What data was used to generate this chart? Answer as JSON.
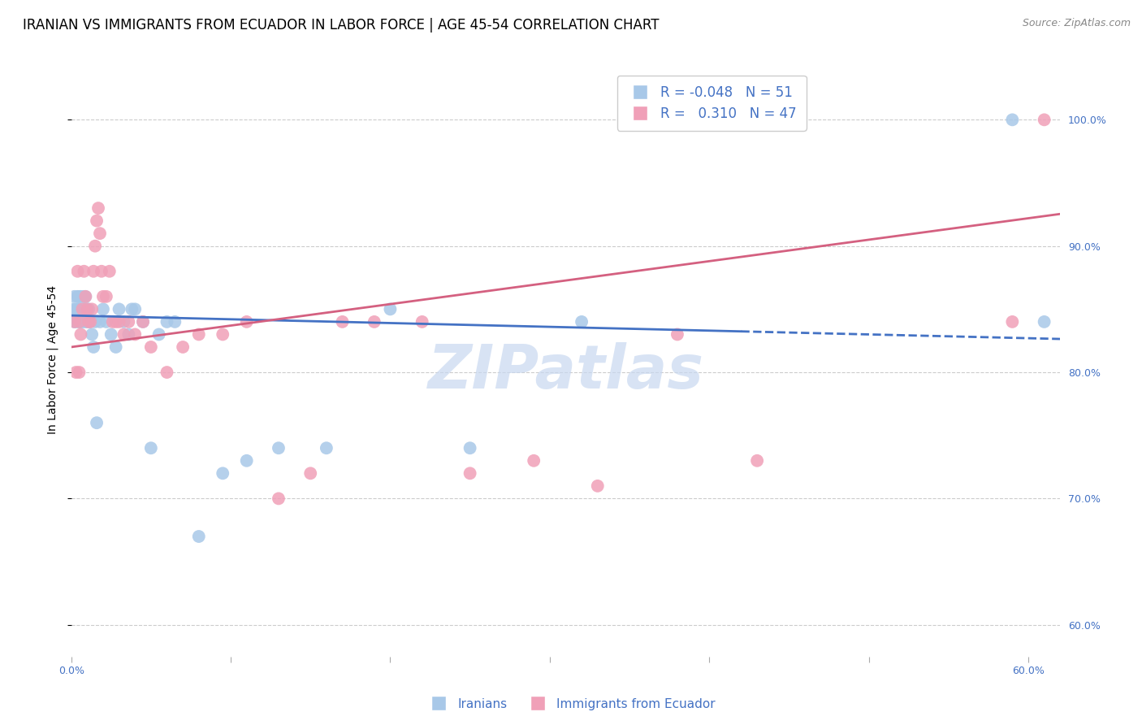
{
  "title": "IRANIAN VS IMMIGRANTS FROM ECUADOR IN LABOR FORCE | AGE 45-54 CORRELATION CHART",
  "source": "Source: ZipAtlas.com",
  "ylabel_left": "In Labor Force | Age 45-54",
  "x_ticks": [
    0.0,
    0.1,
    0.2,
    0.3,
    0.4,
    0.5,
    0.6
  ],
  "x_tick_labels": [
    "0.0%",
    "",
    "",
    "",
    "",
    "",
    "60.0%"
  ],
  "y_ticks_right": [
    0.6,
    0.7,
    0.8,
    0.9,
    1.0
  ],
  "y_tick_labels_right": [
    "60.0%",
    "70.0%",
    "80.0%",
    "90.0%",
    "100.0%"
  ],
  "x_min": 0.0,
  "x_max": 0.62,
  "y_min": 0.575,
  "y_max": 1.045,
  "blue_color": "#A8C8E8",
  "pink_color": "#F0A0B8",
  "blue_line_color": "#4472C4",
  "pink_line_color": "#D46080",
  "R_blue": -0.048,
  "N_blue": 51,
  "R_pink": 0.31,
  "N_pink": 47,
  "legend_label_blue": "Iranians",
  "legend_label_pink": "Immigrants from Ecuador",
  "blue_x": [
    0.001,
    0.002,
    0.002,
    0.003,
    0.003,
    0.004,
    0.004,
    0.005,
    0.005,
    0.005,
    0.006,
    0.006,
    0.007,
    0.007,
    0.008,
    0.008,
    0.009,
    0.009,
    0.01,
    0.01,
    0.011,
    0.012,
    0.013,
    0.014,
    0.015,
    0.016,
    0.018,
    0.02,
    0.022,
    0.025,
    0.028,
    0.03,
    0.033,
    0.036,
    0.038,
    0.04,
    0.045,
    0.05,
    0.055,
    0.06,
    0.065,
    0.08,
    0.095,
    0.11,
    0.13,
    0.16,
    0.2,
    0.25,
    0.32,
    0.59,
    0.61
  ],
  "blue_y": [
    0.85,
    0.84,
    0.86,
    0.85,
    0.84,
    0.86,
    0.85,
    0.84,
    0.86,
    0.85,
    0.84,
    0.86,
    0.85,
    0.84,
    0.86,
    0.85,
    0.84,
    0.86,
    0.85,
    0.84,
    0.85,
    0.84,
    0.83,
    0.82,
    0.84,
    0.76,
    0.84,
    0.85,
    0.84,
    0.83,
    0.82,
    0.85,
    0.84,
    0.83,
    0.85,
    0.85,
    0.84,
    0.74,
    0.83,
    0.84,
    0.84,
    0.67,
    0.72,
    0.73,
    0.74,
    0.74,
    0.85,
    0.74,
    0.84,
    1.0,
    0.84
  ],
  "pink_x": [
    0.002,
    0.003,
    0.004,
    0.005,
    0.005,
    0.006,
    0.007,
    0.008,
    0.009,
    0.01,
    0.011,
    0.012,
    0.013,
    0.014,
    0.015,
    0.016,
    0.017,
    0.018,
    0.019,
    0.02,
    0.022,
    0.024,
    0.026,
    0.028,
    0.03,
    0.033,
    0.036,
    0.04,
    0.045,
    0.05,
    0.06,
    0.07,
    0.08,
    0.095,
    0.11,
    0.13,
    0.15,
    0.17,
    0.19,
    0.22,
    0.25,
    0.29,
    0.33,
    0.38,
    0.43,
    0.59,
    0.61
  ],
  "pink_y": [
    0.84,
    0.8,
    0.88,
    0.84,
    0.8,
    0.83,
    0.85,
    0.88,
    0.86,
    0.85,
    0.84,
    0.84,
    0.85,
    0.88,
    0.9,
    0.92,
    0.93,
    0.91,
    0.88,
    0.86,
    0.86,
    0.88,
    0.84,
    0.84,
    0.84,
    0.83,
    0.84,
    0.83,
    0.84,
    0.82,
    0.8,
    0.82,
    0.83,
    0.83,
    0.84,
    0.7,
    0.72,
    0.84,
    0.84,
    0.84,
    0.72,
    0.73,
    0.71,
    0.83,
    0.73,
    0.84,
    1.0
  ],
  "grid_color": "#CCCCCC",
  "watermark_text": "ZIPatlas",
  "watermark_color": "#C8D8F0",
  "title_fontsize": 12,
  "axis_label_fontsize": 10,
  "tick_fontsize": 9,
  "source_fontsize": 9,
  "legend_fontsize": 11,
  "blue_line_solid_end": 0.42,
  "blue_line_start": 0.0,
  "blue_line_end": 0.62,
  "pink_line_start": 0.0,
  "pink_line_end": 0.62,
  "blue_intercept": 0.845,
  "blue_slope": -0.03,
  "pink_intercept": 0.82,
  "pink_slope": 0.17
}
